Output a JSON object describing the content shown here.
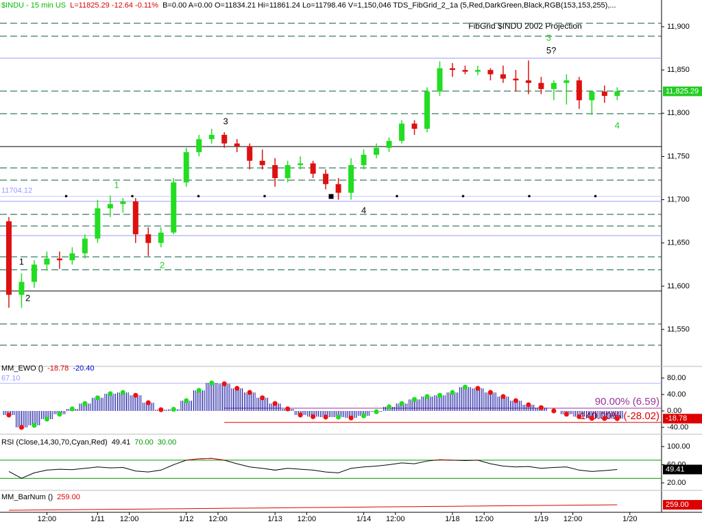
{
  "chart_data": [
    {
      "type": "candlestick",
      "title": "FibGrid $INDU 2002 Projection",
      "header": [
        {
          "text": "$INDU - 15 min  US",
          "color": "#00bb00"
        },
        {
          "text": "L=11825.29  -12.64  -0.11%",
          "color": "#dd0000"
        },
        {
          "text": "B=0.00  A=0.00  O=11834.21  Hi=11861.24  Lo=11798.46  V=1,150,046  TDS_FibGrid_2_1a (5,Red,DarkGreen,Black,RGB(153,153,255),...",
          "color": "#000000"
        }
      ],
      "x": [
        0,
        1,
        2,
        3,
        4,
        5,
        6,
        7,
        8,
        9,
        10,
        11,
        12,
        13,
        14,
        15,
        16,
        17,
        18,
        19,
        20,
        21,
        22,
        23,
        24,
        25,
        26,
        27,
        28,
        29,
        30,
        31,
        32,
        33,
        34,
        35,
        36,
        37,
        38,
        39,
        40,
        41,
        42,
        43,
        44,
        45,
        46,
        47,
        48
      ],
      "xlim": [
        -0.7,
        51.5
      ],
      "xticks": [
        {
          "value": 3,
          "label": "12:00"
        },
        {
          "value": 7,
          "label": "1/11"
        },
        {
          "value": 9.5,
          "label": "12:00"
        },
        {
          "value": 14,
          "label": "1/12"
        },
        {
          "value": 16.5,
          "label": "12:00"
        },
        {
          "value": 21,
          "label": "1/13"
        },
        {
          "value": 23.5,
          "label": "12:00"
        },
        {
          "value": 28,
          "label": "1/14"
        },
        {
          "value": 30.5,
          "label": "12:00"
        },
        {
          "value": 35,
          "label": "1/18"
        },
        {
          "value": 37.5,
          "label": "12:00"
        },
        {
          "value": 42,
          "label": "1/19"
        },
        {
          "value": 44.5,
          "label": "12:00"
        },
        {
          "value": 49,
          "label": "1/20"
        }
      ],
      "open": [
        11675,
        11590,
        11605,
        11625,
        11632,
        11630,
        11638,
        11655,
        11690,
        11695,
        11698,
        11660,
        11650,
        11662,
        11720,
        11755,
        11770,
        11775,
        11765,
        11762,
        11745,
        11740,
        11725,
        11740,
        11742,
        11730,
        11718,
        11708,
        11740,
        11752,
        11760,
        11768,
        11788,
        11782,
        11825,
        11852,
        11850,
        11848,
        11850,
        11845,
        11840,
        11838,
        11835,
        11828,
        11835,
        11838,
        11815,
        11825,
        11820
      ],
      "high": [
        11680,
        11615,
        11630,
        11640,
        11640,
        11645,
        11660,
        11700,
        11705,
        11702,
        11702,
        11668,
        11668,
        11725,
        11760,
        11775,
        11782,
        11778,
        11770,
        11765,
        11758,
        11748,
        11745,
        11750,
        11745,
        11735,
        11725,
        11748,
        11758,
        11765,
        11772,
        11792,
        11792,
        11830,
        11860,
        11858,
        11855,
        11855,
        11852,
        11855,
        11850,
        11861,
        11842,
        11838,
        11845,
        11842,
        11825,
        11832,
        11830
      ],
      "low": [
        11575,
        11575,
        11598,
        11618,
        11620,
        11625,
        11632,
        11650,
        11680,
        11685,
        11650,
        11635,
        11645,
        11660,
        11715,
        11750,
        11765,
        11760,
        11755,
        11735,
        11735,
        11715,
        11720,
        11735,
        11725,
        11712,
        11700,
        11700,
        11735,
        11748,
        11755,
        11765,
        11775,
        11778,
        11820,
        11842,
        11845,
        11844,
        11838,
        11835,
        11825,
        11822,
        11822,
        11815,
        11810,
        11805,
        11798,
        11812,
        11815
      ],
      "close": [
        11590,
        11605,
        11625,
        11632,
        11630,
        11638,
        11655,
        11690,
        11695,
        11698,
        11660,
        11650,
        11662,
        11720,
        11755,
        11770,
        11775,
        11765,
        11762,
        11745,
        11740,
        11725,
        11740,
        11742,
        11730,
        11718,
        11708,
        11740,
        11752,
        11760,
        11768,
        11788,
        11782,
        11825,
        11852,
        11850,
        11848,
        11850,
        11845,
        11840,
        11838,
        11835,
        11828,
        11835,
        11838,
        11815,
        11825,
        11820,
        11825.29
      ],
      "ylim": [
        11511.2,
        11930.9
      ],
      "yticks": [
        {
          "value": 11550,
          "label": "11,550"
        },
        {
          "value": 11600,
          "label": "11,600"
        },
        {
          "value": 11650,
          "label": "11,650"
        },
        {
          "value": 11700,
          "label": "11,700"
        },
        {
          "value": 11750,
          "label": "11,750"
        },
        {
          "value": 11800,
          "label": "11,800"
        },
        {
          "value": 11850,
          "label": "11,850"
        },
        {
          "value": 11900,
          "label": "11,900"
        }
      ],
      "fib_levels": {
        "dashed": [
          11904,
          11889,
          11825.6,
          11799.4,
          11736.8,
          11722.6,
          11683,
          11669.6,
          11633.9,
          11619,
          11556.3,
          11531.8
        ],
        "solid": [
          11761.4,
          11594.4
        ],
        "light": [
          11863.6,
          11698.1,
          11658.5
        ]
      },
      "pivot": 11704.12,
      "colors": {
        "up": "#22dd22",
        "down": "#dd1111",
        "dashed": "#005a3c",
        "solid": "#000000",
        "light": "rgb(153,153,255)"
      },
      "annotations": [
        {
          "text": "1",
          "x": 1.0,
          "y": 11627.6,
          "color": "#000000"
        },
        {
          "text": "2",
          "x": 1.5,
          "y": 11585.6,
          "color": "#000000"
        },
        {
          "text": "1",
          "x": 8.5,
          "y": 11716.3,
          "color": "#22cc22"
        },
        {
          "text": "2",
          "x": 12.1,
          "y": 11623.7,
          "color": "#22cc22"
        },
        {
          "text": "3",
          "x": 17.1,
          "y": 11790,
          "color": "#000000"
        },
        {
          "text": "4",
          "x": 28.0,
          "y": 11687,
          "color": "#000000"
        },
        {
          "text": "3",
          "x": 42.6,
          "y": 11886.5,
          "color": "#22cc22"
        },
        {
          "text": "5?",
          "x": 42.8,
          "y": 11872,
          "color": "#000000"
        },
        {
          "text": "4",
          "x": 48.0,
          "y": 11785,
          "color": "#22cc22"
        }
      ],
      "last": {
        "value": 11825.29,
        "label": "11,825.29"
      },
      "last_color": "#22cc22"
    },
    {
      "type": "oscillator",
      "title": "MM_EWO ()",
      "legend_values": [
        {
          "value": -18.78,
          "label": "-18.78",
          "color": "#dd0000"
        },
        {
          "value": -20.4,
          "label": "-20.40",
          "color": "#0000cc"
        }
      ],
      "values": [
        -10,
        -40,
        -35,
        -20,
        -8,
        5,
        18,
        32,
        42,
        45,
        38,
        20,
        3,
        4,
        25,
        50,
        68,
        66,
        55,
        45,
        32,
        18,
        5,
        -10,
        -14,
        -15,
        -15,
        -17,
        -12,
        -2,
        10,
        18,
        28,
        35,
        38,
        45,
        58,
        55,
        45,
        35,
        25,
        15,
        8,
        0,
        -8,
        -14,
        -18,
        -18.5,
        -18.78
      ],
      "color": "#000099",
      "up_color": "#22dd22",
      "down_color": "#ee1111",
      "ylim": [
        -46.7,
        100
      ],
      "yticks": [
        {
          "value": -40,
          "label": "-40.00"
        },
        {
          "value": 0,
          "label": "0.00"
        },
        {
          "value": 40,
          "label": "40.00"
        },
        {
          "value": 80,
          "label": "80.00"
        }
      ],
      "level": {
        "value": 67.1,
        "label": "67.10"
      },
      "level_color": "rgb(153,153,255)",
      "fib_lines": [
        {
          "value": 6.59,
          "label": "90.00% (6.59)",
          "color": "#993399"
        },
        {
          "value": -28.02,
          "label": "140.00% (-28.02)",
          "color": "#dd0000"
        }
      ],
      "last": {
        "value": -18.78,
        "label": "-18.78"
      },
      "last_color": "#dd0000"
    },
    {
      "type": "line",
      "title": "RSI (Close,14,30,70,Cyan,Red)",
      "legend_values": [
        {
          "value": 49.41,
          "label": "49.41",
          "color": "#000000"
        },
        {
          "value": 70,
          "label": "70.00",
          "color": "#009900"
        },
        {
          "value": 30,
          "label": "30.00",
          "color": "#009900"
        }
      ],
      "values": [
        45,
        30,
        42,
        48,
        50,
        49,
        52,
        55,
        53,
        54,
        46,
        44,
        48,
        60,
        70,
        73,
        74,
        70,
        62,
        55,
        52,
        48,
        52,
        50,
        48,
        44,
        42,
        52,
        55,
        57,
        60,
        64,
        62,
        68,
        71,
        70,
        69,
        70,
        62,
        57,
        55,
        56,
        52,
        54,
        55,
        48,
        45,
        47,
        49.41
      ],
      "color": "#000000",
      "over_color": "#dd0000",
      "bands": [
        70,
        30
      ],
      "band_color": "#009900",
      "ylim": [
        9.4,
        118.1
      ],
      "yticks": [
        {
          "value": 20,
          "label": "20.00"
        },
        {
          "value": 60,
          "label": "60.00"
        },
        {
          "value": 100,
          "label": "100.00"
        }
      ],
      "last": 49.41,
      "last_color": "#000000"
    },
    {
      "type": "line",
      "title": "MM_BarNum ()",
      "legend_values": [
        {
          "value": 259,
          "label": "259.00",
          "color": "#dd0000"
        }
      ],
      "values": [
        76,
        80,
        84,
        87,
        91,
        95,
        99,
        103,
        107,
        110,
        114,
        118,
        122,
        126,
        129,
        133,
        137,
        141,
        145,
        148,
        152,
        156,
        160,
        164,
        168,
        171,
        175,
        179,
        183,
        187,
        190,
        194,
        198,
        202,
        206,
        209,
        213,
        217,
        221,
        225,
        229,
        232,
        236,
        240,
        244,
        248,
        251,
        255,
        259
      ],
      "color": "#dd0000",
      "ylim": [
        8,
        648
      ],
      "last": {
        "value": 259,
        "label": "259.00"
      },
      "last_color": "#dd0000"
    }
  ]
}
